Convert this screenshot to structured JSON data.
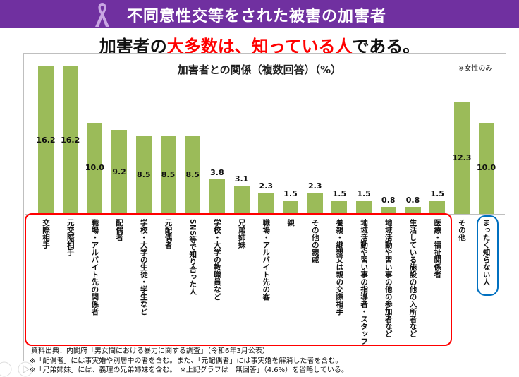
{
  "header": {
    "title": "不同意性交等をされた被害の加害者"
  },
  "headline": {
    "part1": "加害者の",
    "part2_red": "大多数は、知っている人",
    "part3": "である。"
  },
  "colors": {
    "header": "#7030a0",
    "bar": "#9bbb59",
    "highlight_red": "#ff0000",
    "highlight_blue": "#0070c0"
  },
  "chart_data": {
    "type": "bar",
    "title": "加害者との関係（複数回答）（%）",
    "note": "※女性のみ",
    "ylim": [
      0,
      16.2
    ],
    "categories": [
      "交際相手",
      "元交際相手",
      "職場・アルバイト先の関係者",
      "配偶者",
      "学校・大学の生徒・学生など",
      "元配偶者",
      "SNS等で知り合った人",
      "学校・大学の教職員など",
      "兄弟姉妹",
      "職場・アルバイト先の客",
      "親",
      "その他の親戚",
      "養親・継親又は親の交際相手",
      "地域活動や習い事の指導者・スタッフ",
      "地域活動や習い事の他の参加者など",
      "生活している施設の他の入所者など",
      "医療・福祉関係者",
      "その他",
      "まったく知らない人"
    ],
    "values": [
      16.2,
      16.2,
      10.0,
      9.2,
      8.5,
      8.5,
      8.5,
      3.8,
      3.1,
      2.3,
      1.5,
      2.3,
      1.5,
      1.5,
      0.8,
      0.8,
      1.5,
      12.3,
      10.0
    ],
    "value_labels": [
      "16.2",
      "16.2",
      "10.0",
      "9.2",
      "8.5",
      "8.5",
      "8.5",
      "3.8",
      "3.1",
      "2.3",
      "1.5",
      "2.3",
      "1.5",
      "1.5",
      "0.8",
      "0.8",
      "1.5",
      "12.3",
      "10.0"
    ]
  },
  "footer": {
    "source": "資料出典：内閣府「男女間における暴力に関する調査」（令和6年3月公表）",
    "note1": "※「配偶者」には事実婚や別居中の者を含む。また、「元配偶者」には事実婚を解消した者を含む。",
    "note2": "※「兄弟姉妹」には、義理の兄弟姉妹を含む。　※上記グラフは「無回答」（4.6%）を省略している。"
  }
}
